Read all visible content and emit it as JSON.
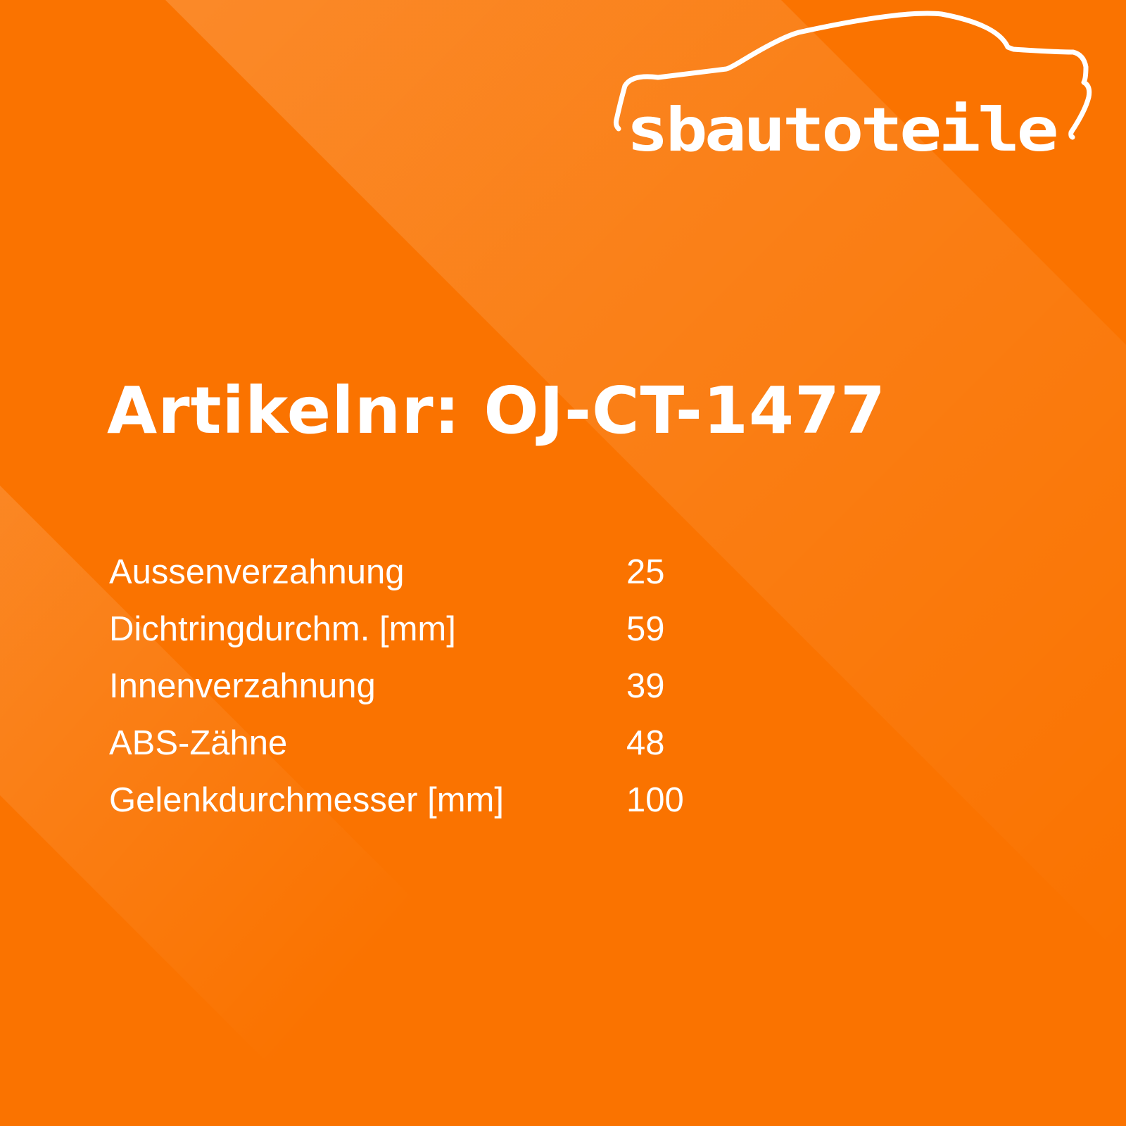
{
  "brand": {
    "logo_text": "sbautoteile",
    "color": "#FA7300"
  },
  "title": "Artikelnr: OJ-CT-1477",
  "specs": [
    {
      "label": "Aussenverzahnung",
      "value": "25"
    },
    {
      "label": "Dichtringdurchm. [mm]",
      "value": "59"
    },
    {
      "label": "Innenverzahnung",
      "value": "39"
    },
    {
      "label": "ABS-Zähne",
      "value": "48"
    },
    {
      "label": "Gelenkdurchmesser [mm]",
      "value": "100"
    }
  ]
}
